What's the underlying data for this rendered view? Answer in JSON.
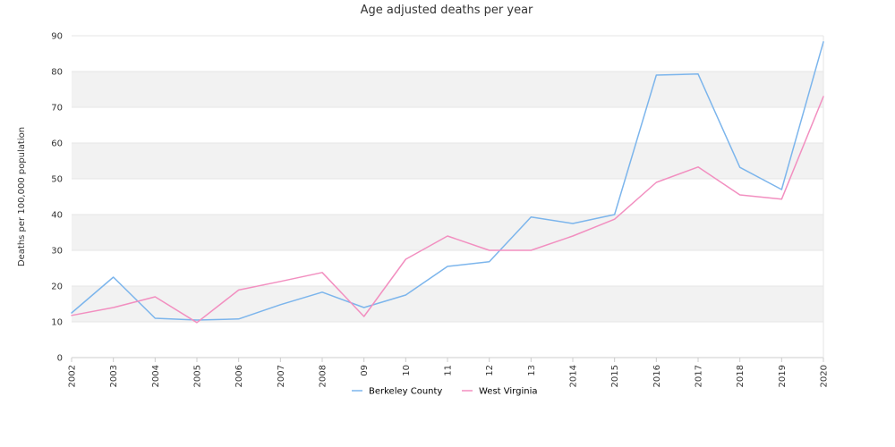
{
  "chart_data": {
    "type": "line",
    "title": "Age adjusted deaths per year",
    "xlabel": "",
    "ylabel": "Deaths per 100,000 population",
    "ylim": [
      0,
      90
    ],
    "yticks": [
      0,
      10,
      20,
      30,
      40,
      50,
      60,
      70,
      80,
      90
    ],
    "grid": "horizontal alternating bands",
    "legend_position": "bottom",
    "categories": [
      "2002",
      "2003",
      "2004",
      "2005",
      "2006",
      "2007",
      "2008",
      "09",
      "10",
      "11",
      "12",
      "13",
      "2014",
      "2015",
      "2016",
      "2017",
      "2018",
      "2019",
      "2020"
    ],
    "series": [
      {
        "name": "Berkeley County",
        "color": "#7cb5ec",
        "values": [
          12.5,
          22.5,
          11.0,
          10.5,
          10.8,
          14.8,
          18.3,
          14.0,
          17.5,
          25.5,
          26.8,
          39.3,
          37.5,
          40.0,
          79.0,
          79.3,
          53.2,
          47.0,
          88.3
        ]
      },
      {
        "name": "West Virginia",
        "color": "#f28fc0",
        "values": [
          11.8,
          14.0,
          17.0,
          9.8,
          18.9,
          21.3,
          23.8,
          11.5,
          27.5,
          34.0,
          30.0,
          30.0,
          34.0,
          38.7,
          49.0,
          53.3,
          45.5,
          44.3,
          73.0
        ]
      }
    ]
  }
}
